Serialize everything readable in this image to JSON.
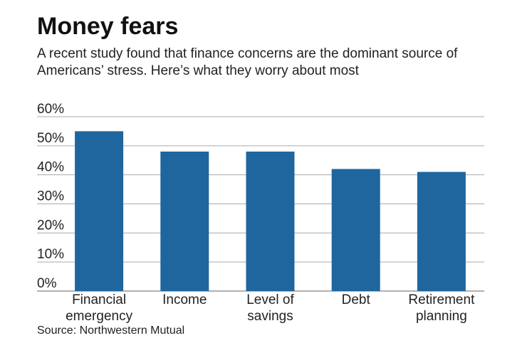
{
  "chart_data": {
    "type": "bar",
    "title": "Money fears",
    "subtitle": "A recent study found that finance concerns are the dominant source of Americans’ stress. Here’s what they worry about most",
    "source": "Source: Northwestern Mutual",
    "categories": [
      "Financial emergency",
      "Income",
      "Level of savings",
      "Debt",
      "Retirement planning"
    ],
    "values": [
      55,
      48,
      48,
      42,
      41
    ],
    "color": "#1f669e",
    "ylim": [
      0,
      60
    ],
    "yticks": [
      {
        "value": 0,
        "label": "0%"
      },
      {
        "value": 10,
        "label": "10%"
      },
      {
        "value": 20,
        "label": "20%"
      },
      {
        "value": 30,
        "label": "30%"
      },
      {
        "value": 40,
        "label": "40%"
      },
      {
        "value": 50,
        "label": "50%"
      },
      {
        "value": 60,
        "label": "60%"
      }
    ],
    "grid": true
  }
}
